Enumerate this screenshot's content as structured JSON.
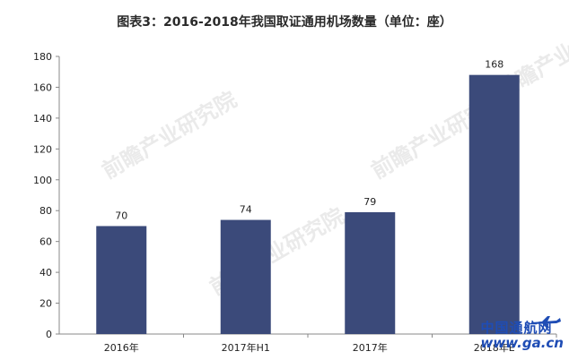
{
  "chart_data": {
    "type": "bar",
    "title": "图表3：2016-2018年我国取证通用机场数量（单位：座）",
    "categories": [
      "2016年",
      "2017年H1",
      "2017年",
      "2018年E"
    ],
    "values": [
      70,
      74,
      79,
      168
    ],
    "ylim": [
      0,
      180
    ],
    "yticks": [
      0,
      20,
      40,
      60,
      80,
      100,
      120,
      140,
      160,
      180
    ],
    "bar_color": "#3b4a7a",
    "grid": false,
    "legend": "none"
  },
  "watermark": {
    "brand": "前瞻产业研究院"
  },
  "site": {
    "name_cn": "中国通航网",
    "url": "www.ga.cn",
    "color": "#1f4db5"
  }
}
